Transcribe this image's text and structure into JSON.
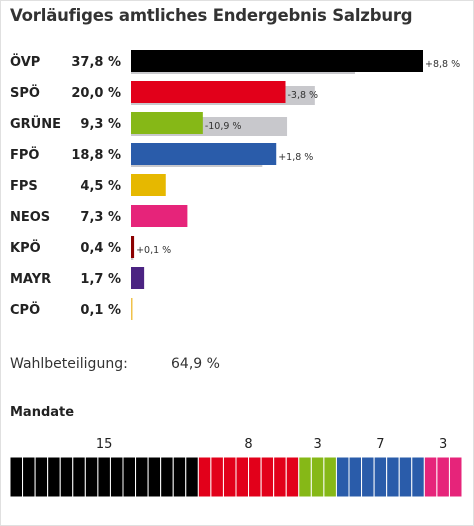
{
  "title": "Vorläufiges amtliches Endergebnis Salzburg",
  "chart_data": {
    "type": "bar",
    "orientation": "horizontal",
    "title": "Vorläufiges amtliches Endergebnis Salzburg",
    "categories": [
      "ÖVP",
      "SPÖ",
      "GRÜNE",
      "FPÖ",
      "FPS",
      "NEOS",
      "KPÖ",
      "MAYR",
      "CPÖ"
    ],
    "value_labels": [
      "37,8 %",
      "20,0 %",
      "9,3 %",
      "18,8 %",
      "4,5 %",
      "7,3 %",
      "0,4 %",
      "1,7 %",
      "0,1 %"
    ],
    "series": [
      {
        "values": [
          37.8,
          20.0,
          9.3,
          18.8,
          4.5,
          7.3,
          0.4,
          1.7,
          0.1
        ]
      },
      {
        "values": [
          29.0,
          23.8,
          20.2,
          17.0,
          null,
          null,
          0.3,
          null,
          null
        ]
      }
    ],
    "change_labels": [
      "+8,8 %",
      "-3,8 %",
      "-10,9 %",
      "+1,8 %",
      "",
      "",
      "+0,1 %",
      "",
      ""
    ],
    "colors": [
      "#000000",
      "#e2001a",
      "#86b817",
      "#2a5caa",
      "#e6b800",
      "#e6247a",
      "#8b0000",
      "#4b2382",
      "#f0c24a"
    ],
    "previous_color": "#c8c8cc",
    "xlim": [
      0,
      40
    ]
  },
  "turnout": {
    "label": "Wahlbeteiligung:",
    "value": "64,9 %"
  },
  "mandate": {
    "title": "Mandate",
    "parties": [
      {
        "count": 15,
        "color": "#000000"
      },
      {
        "count": 8,
        "color": "#e2001a"
      },
      {
        "count": 3,
        "color": "#86b817"
      },
      {
        "count": 7,
        "color": "#2a5caa"
      },
      {
        "count": 3,
        "color": "#e6247a"
      }
    ]
  }
}
